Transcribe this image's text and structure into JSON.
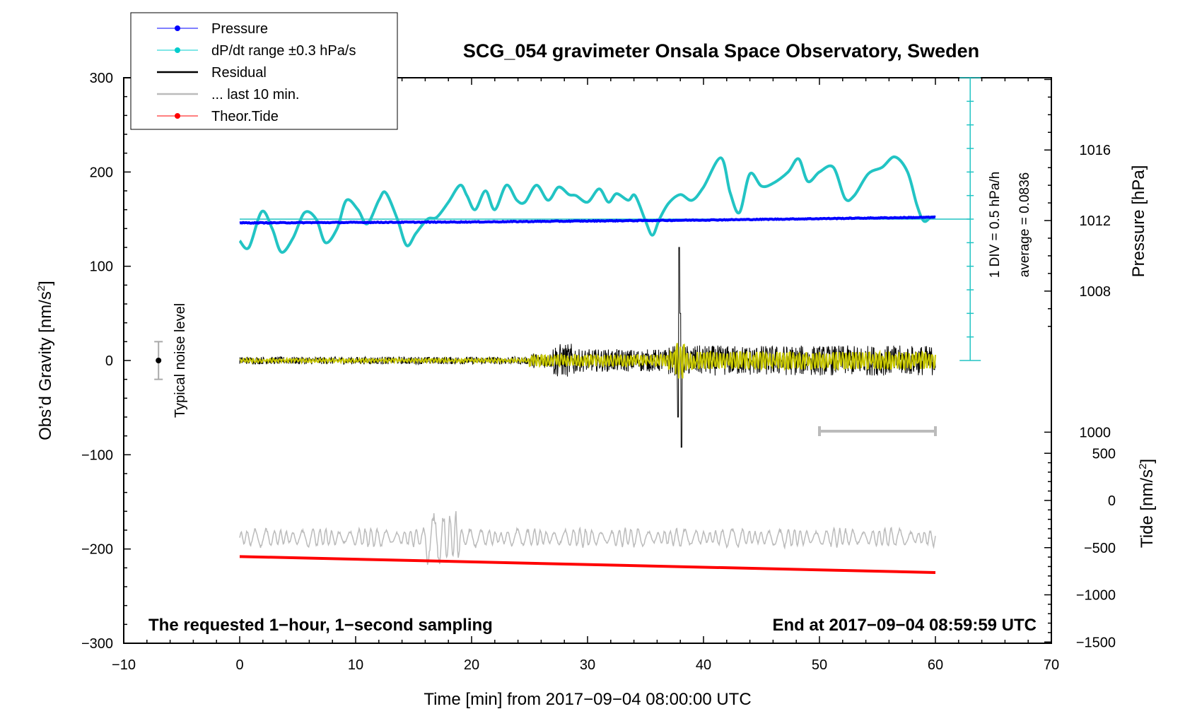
{
  "chart_data": {
    "type": "line",
    "title": "SCG_054 gravimeter Onsala Space Observatory, Sweden",
    "xlabel": "Time [min] from 2017−09−04 08:00:00 UTC",
    "ylabel": "Obs’d Gravity [nm/s",
    "ylabel_sup": "2",
    "ylabel_close": "]",
    "y2label_pressure": "Pressure [hPa]",
    "y2label_tide": "Tide [nm/s",
    "y2label_tide_sup": "2",
    "y2label_tide_close": "]",
    "xlim": [
      -10,
      70
    ],
    "ylim": [
      -300,
      300
    ],
    "x_ticks": [
      -10,
      0,
      10,
      20,
      30,
      40,
      50,
      60,
      70
    ],
    "x_tick_labels": [
      "−10",
      "0",
      "10",
      "20",
      "30",
      "40",
      "50",
      "60",
      "70"
    ],
    "y_ticks": [
      300,
      200,
      100,
      0,
      -100,
      -200,
      -300
    ],
    "y_tick_labels": [
      "300",
      "200",
      "100",
      "0",
      "−100",
      "−200",
      "−300"
    ],
    "pressure_ticks": [
      1016,
      1012,
      1008,
      1000
    ],
    "pressure_tick_labels": [
      "1016",
      "1012",
      "1008",
      "1000"
    ],
    "tide_ticks": [
      500,
      0,
      -500,
      -1000,
      -1500
    ],
    "tide_tick_labels": [
      "500",
      "0",
      "−500",
      "−1000",
      "−1500"
    ],
    "legend": [
      {
        "label": "Pressure",
        "color": "#0000ff",
        "marker": true
      },
      {
        "label": "dP/dt range ±0.3 hPa/s",
        "color": "#00cccc",
        "marker": true
      },
      {
        "label": "Residual",
        "color": "#000000",
        "marker": false
      },
      {
        "label": "... last 10 min.",
        "color": "#bbbbbb",
        "marker": false
      },
      {
        "label": "Theor.Tide",
        "color": "#ff0000",
        "marker": true
      }
    ],
    "legend_position": "top-left",
    "series": [
      {
        "name": "Pressure",
        "color": "#0000ff",
        "x": [
          0,
          10,
          20,
          30,
          40,
          50,
          60
        ],
        "values": [
          146,
          146.5,
          147,
          148,
          149,
          150.5,
          152
        ]
      },
      {
        "name": "dP/dt",
        "color": "#22c4c4",
        "x": [
          0,
          0.8,
          1.9,
          2.8,
          3.6,
          4.6,
          5.6,
          6.6,
          7.4,
          8.4,
          9.2,
          10.2,
          11,
          12,
          12.6,
          13.6,
          14.4,
          15.2,
          16.2,
          17,
          18,
          19,
          19.6,
          20.3,
          21.2,
          22,
          23,
          23.9,
          24.6,
          25.6,
          26.6,
          27.5,
          28.4,
          29,
          30,
          31,
          31.8,
          32.5,
          33.5,
          34.1,
          35,
          35.6,
          36.2,
          37,
          38,
          39,
          40,
          41.5,
          42.3,
          43.1,
          44,
          45,
          46,
          47.3,
          48.2,
          49,
          50,
          51.2,
          52.2,
          53,
          54.2,
          55.4,
          56.5,
          57.6,
          58.4,
          59,
          59.6,
          60
        ],
        "values": [
          127,
          120,
          158,
          140,
          115,
          130,
          157,
          150,
          125,
          140,
          170,
          160,
          145,
          170,
          178,
          150,
          122,
          135,
          150,
          152,
          168,
          186,
          175,
          160,
          180,
          160,
          186,
          170,
          168,
          186,
          170,
          184,
          176,
          175,
          168,
          182,
          168,
          177,
          170,
          175,
          148,
          133,
          150,
          167,
          176,
          170,
          184,
          215,
          178,
          157,
          198,
          185,
          188,
          200,
          214,
          190,
          200,
          205,
          172,
          175,
          198,
          205,
          216,
          200,
          165,
          148,
          152,
          152
        ]
      },
      {
        "name": "Residual",
        "color": "#000000",
        "x_range": [
          0,
          60
        ],
        "values": []
      },
      {
        "name": "Residual (filtered)",
        "color": "#c8c800",
        "x_range": [
          0,
          60
        ],
        "values": []
      },
      {
        "name": "last 10 min.",
        "color": "#bbbbbb",
        "x_range": [
          0,
          60
        ],
        "values": []
      },
      {
        "name": "Theor.Tide",
        "color": "#ff0000",
        "x": [
          0,
          60
        ],
        "values": [
          -208,
          -225
        ]
      }
    ],
    "dpdt_scale": {
      "label": "1 DIV = 0.5 hPa/h",
      "average_label": "average = 0.0836",
      "x": 63,
      "y_top": 300,
      "y_bottom": 0,
      "ref_y": 150,
      "divisions": 12
    },
    "noise_level": {
      "label": "Typical noise level",
      "x": -7,
      "value": 0,
      "range": [
        -20,
        20
      ]
    },
    "last10_bar": {
      "x_start": 50,
      "x_end": 60,
      "y": -75
    },
    "annotations": {
      "left": "The requested 1−hour, 1−second sampling",
      "right": "End at 2017−09−04 08:59:59 UTC"
    }
  }
}
